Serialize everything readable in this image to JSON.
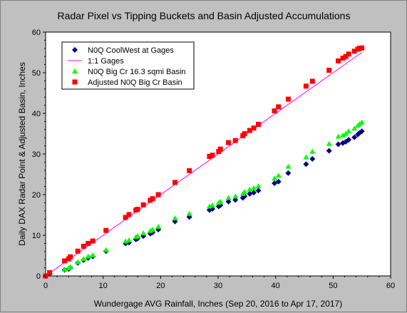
{
  "chart_data": {
    "type": "scatter",
    "title": "Radar Pixel vs Tipping Buckets and Basin Adjusted Accumulations",
    "xlabel": "Wundergage AVG Rainfall, Inches (Sep 20, 2016 to Apr 17, 2017)",
    "ylabel": "Daily DAX Radar Point & Adjusted Basin, Inches",
    "xlim": [
      0,
      60
    ],
    "ylim": [
      0,
      60
    ],
    "x_ticks": [
      "0",
      "10",
      "20",
      "30",
      "40",
      "50",
      "60"
    ],
    "y_ticks": [
      "0",
      "10",
      "20",
      "30",
      "40",
      "50",
      "60"
    ],
    "grid": false,
    "legend_position": "top-left",
    "plot_background": "#ffffff",
    "frame_background": "#c0c0c0",
    "series": [
      {
        "name": "N0Q CoolWest at Gages",
        "kind": "points",
        "marker": "diamond",
        "color": "#00007f",
        "points": [
          [
            0,
            0
          ],
          [
            0.7,
            0.6
          ],
          [
            3.3,
            1.5
          ],
          [
            4.0,
            1.7
          ],
          [
            4.3,
            2.0
          ],
          [
            5.6,
            3.2
          ],
          [
            6.6,
            3.9
          ],
          [
            7.4,
            4.4
          ],
          [
            8.2,
            4.8
          ],
          [
            10.5,
            6.1
          ],
          [
            13.9,
            8.0
          ],
          [
            14.5,
            8.2
          ],
          [
            15.7,
            9.0
          ],
          [
            16.0,
            9.2
          ],
          [
            17.0,
            9.8
          ],
          [
            18.2,
            10.4
          ],
          [
            18.6,
            10.7
          ],
          [
            19.6,
            11.4
          ],
          [
            22.5,
            13.4
          ],
          [
            25.0,
            14.5
          ],
          [
            28.5,
            16.2
          ],
          [
            29.0,
            16.5
          ],
          [
            30.1,
            17.1
          ],
          [
            30.4,
            17.4
          ],
          [
            31.8,
            18.3
          ],
          [
            33.0,
            18.7
          ],
          [
            34.3,
            19.2
          ],
          [
            34.6,
            19.6
          ],
          [
            35.5,
            20.2
          ],
          [
            36.2,
            20.5
          ],
          [
            37.0,
            21.0
          ],
          [
            39.8,
            22.8
          ],
          [
            40.5,
            23.2
          ],
          [
            42.2,
            25.3
          ],
          [
            45.3,
            27.5
          ],
          [
            46.4,
            28.8
          ],
          [
            49.3,
            30.8
          ],
          [
            50.9,
            32.4
          ],
          [
            51.7,
            32.7
          ],
          [
            52.2,
            33.0
          ],
          [
            52.7,
            33.5
          ],
          [
            53.7,
            34.1
          ],
          [
            54.3,
            34.8
          ],
          [
            54.6,
            35.2
          ],
          [
            55.0,
            35.6
          ]
        ]
      },
      {
        "name": "1:1 Gages",
        "kind": "line",
        "color": "#ff00ff",
        "points": [
          [
            0,
            0
          ],
          [
            55,
            55
          ]
        ]
      },
      {
        "name": "N0Q Big Cr 16.3 sqmi Basin",
        "kind": "points",
        "marker": "triangle",
        "color": "#00ff00",
        "points": [
          [
            0,
            0
          ],
          [
            0.7,
            0.7
          ],
          [
            3.3,
            1.6
          ],
          [
            4.0,
            1.9
          ],
          [
            4.3,
            2.2
          ],
          [
            5.6,
            3.4
          ],
          [
            6.6,
            4.2
          ],
          [
            7.4,
            4.8
          ],
          [
            8.2,
            5.1
          ],
          [
            10.5,
            6.4
          ],
          [
            13.9,
            8.5
          ],
          [
            14.5,
            8.8
          ],
          [
            15.7,
            9.6
          ],
          [
            16.0,
            9.8
          ],
          [
            17.0,
            10.5
          ],
          [
            18.2,
            11.1
          ],
          [
            18.6,
            11.4
          ],
          [
            19.6,
            12.1
          ],
          [
            22.5,
            14.2
          ],
          [
            25.0,
            15.3
          ],
          [
            28.5,
            17.1
          ],
          [
            29.0,
            17.4
          ],
          [
            30.1,
            18.0
          ],
          [
            30.4,
            18.3
          ],
          [
            31.8,
            19.2
          ],
          [
            33.0,
            19.6
          ],
          [
            34.3,
            20.2
          ],
          [
            34.6,
            20.7
          ],
          [
            35.5,
            21.3
          ],
          [
            36.2,
            21.6
          ],
          [
            37.0,
            22.1
          ],
          [
            39.8,
            24.0
          ],
          [
            40.5,
            24.7
          ],
          [
            42.2,
            26.9
          ],
          [
            45.3,
            29.2
          ],
          [
            46.4,
            30.6
          ],
          [
            49.3,
            32.5
          ],
          [
            50.9,
            34.3
          ],
          [
            51.7,
            34.6
          ],
          [
            52.2,
            35.0
          ],
          [
            52.7,
            35.6
          ],
          [
            53.7,
            36.3
          ],
          [
            54.3,
            37.0
          ],
          [
            54.6,
            37.4
          ],
          [
            55.0,
            37.8
          ]
        ]
      },
      {
        "name": "Adjusted N0Q Big Cr Basin",
        "kind": "points",
        "marker": "square",
        "color": "#ff0000",
        "points": [
          [
            0,
            0
          ],
          [
            0.7,
            0.8
          ],
          [
            3.3,
            3.7
          ],
          [
            4.0,
            4.2
          ],
          [
            4.3,
            4.7
          ],
          [
            5.6,
            6.1
          ],
          [
            6.6,
            7.3
          ],
          [
            7.4,
            8.0
          ],
          [
            8.2,
            8.6
          ],
          [
            10.5,
            11.2
          ],
          [
            13.9,
            14.4
          ],
          [
            14.5,
            15.1
          ],
          [
            15.7,
            16.2
          ],
          [
            16.0,
            16.4
          ],
          [
            17.0,
            17.5
          ],
          [
            18.2,
            18.6
          ],
          [
            18.6,
            19.0
          ],
          [
            19.6,
            20.0
          ],
          [
            22.5,
            23.0
          ],
          [
            25.0,
            25.9
          ],
          [
            28.5,
            29.4
          ],
          [
            29.0,
            29.7
          ],
          [
            30.1,
            30.6
          ],
          [
            30.4,
            31.2
          ],
          [
            31.8,
            32.8
          ],
          [
            33.0,
            33.3
          ],
          [
            34.3,
            34.5
          ],
          [
            34.6,
            35.0
          ],
          [
            35.5,
            35.8
          ],
          [
            36.2,
            36.4
          ],
          [
            37.0,
            37.3
          ],
          [
            39.8,
            40.6
          ],
          [
            40.5,
            41.6
          ],
          [
            42.2,
            43.5
          ],
          [
            45.3,
            46.7
          ],
          [
            46.4,
            47.9
          ],
          [
            49.3,
            50.6
          ],
          [
            50.9,
            52.9
          ],
          [
            51.7,
            53.6
          ],
          [
            52.2,
            54.0
          ],
          [
            52.7,
            54.6
          ],
          [
            53.7,
            55.3
          ],
          [
            54.3,
            55.8
          ],
          [
            54.6,
            56.0
          ],
          [
            55.0,
            56.1
          ]
        ]
      }
    ]
  }
}
